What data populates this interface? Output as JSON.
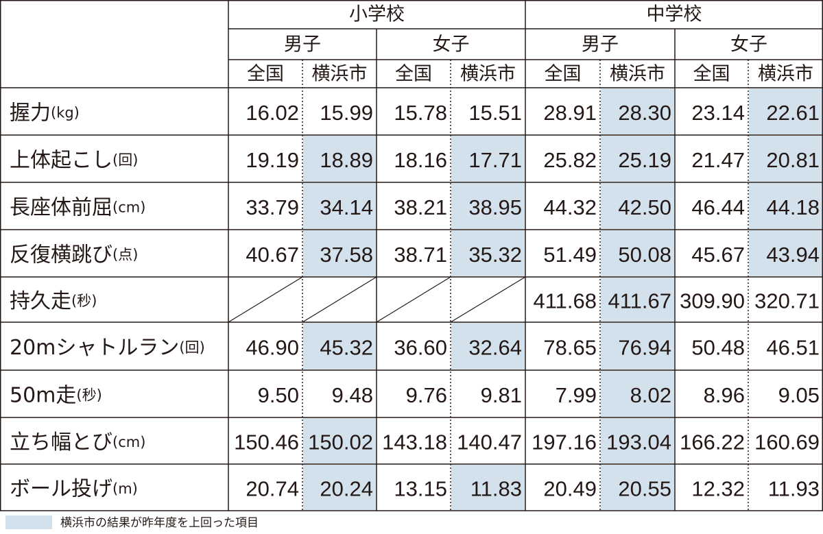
{
  "header": {
    "groups": [
      "小学校",
      "中学校"
    ],
    "sexes": [
      "男子",
      "女子",
      "男子",
      "女子"
    ],
    "columns": [
      "全国",
      "横浜市",
      "全国",
      "横浜市",
      "全国",
      "横浜市",
      "全国",
      "横浜市"
    ]
  },
  "rows": [
    {
      "label": "握力",
      "unit": "(kg)",
      "values": [
        "16.02",
        "15.99",
        "15.78",
        "15.51",
        "28.91",
        "28.30",
        "23.14",
        "22.61"
      ],
      "highlighted": [
        false,
        false,
        false,
        false,
        false,
        true,
        false,
        true
      ]
    },
    {
      "label": "上体起こし",
      "unit": "(回)",
      "values": [
        "19.19",
        "18.89",
        "18.16",
        "17.71",
        "25.82",
        "25.19",
        "21.47",
        "20.81"
      ],
      "highlighted": [
        false,
        true,
        false,
        true,
        false,
        true,
        false,
        true
      ]
    },
    {
      "label": "長座体前屈",
      "unit": "(cm)",
      "values": [
        "33.79",
        "34.14",
        "38.21",
        "38.95",
        "44.32",
        "42.50",
        "46.44",
        "44.18"
      ],
      "highlighted": [
        false,
        true,
        false,
        true,
        false,
        true,
        false,
        true
      ]
    },
    {
      "label": "反復横跳び",
      "unit": "(点)",
      "values": [
        "40.67",
        "37.58",
        "38.71",
        "35.32",
        "51.49",
        "50.08",
        "45.67",
        "43.94"
      ],
      "highlighted": [
        false,
        true,
        false,
        true,
        false,
        true,
        false,
        true
      ]
    },
    {
      "label": "持久走",
      "unit": "(秒)",
      "values": [
        null,
        null,
        null,
        null,
        "411.68",
        "411.67",
        "309.90",
        "320.71"
      ],
      "highlighted": [
        false,
        false,
        false,
        false,
        false,
        true,
        false,
        false
      ]
    },
    {
      "label": "20mシャトルラン",
      "unit": "(回)",
      "values": [
        "46.90",
        "45.32",
        "36.60",
        "32.64",
        "78.65",
        "76.94",
        "50.48",
        "46.51"
      ],
      "highlighted": [
        false,
        true,
        false,
        true,
        false,
        true,
        false,
        false
      ]
    },
    {
      "label": "50m走",
      "unit": "(秒)",
      "values": [
        "9.50",
        "9.48",
        "9.76",
        "9.81",
        "7.99",
        "8.02",
        "8.96",
        "9.05"
      ],
      "highlighted": [
        false,
        false,
        false,
        false,
        false,
        true,
        false,
        false
      ]
    },
    {
      "label": "立ち幅とび",
      "unit": "(cm)",
      "values": [
        "150.46",
        "150.02",
        "143.18",
        "140.47",
        "197.16",
        "193.04",
        "166.22",
        "160.69"
      ],
      "highlighted": [
        false,
        true,
        false,
        false,
        false,
        true,
        false,
        false
      ]
    },
    {
      "label": "ボール投げ",
      "unit": "(m)",
      "values": [
        "20.74",
        "20.24",
        "13.15",
        "11.83",
        "20.49",
        "20.55",
        "12.32",
        "11.93"
      ],
      "highlighted": [
        false,
        true,
        false,
        true,
        false,
        true,
        false,
        false
      ]
    }
  ],
  "legend": "横浜市の結果が昨年度を上回った項目"
}
